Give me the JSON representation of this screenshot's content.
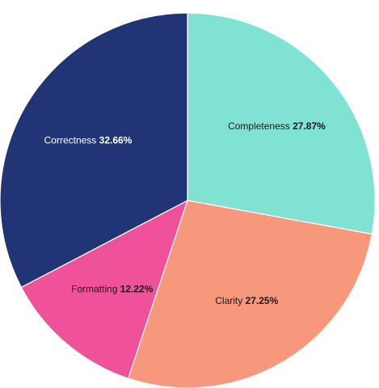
{
  "chart_data": {
    "type": "pie",
    "title": "",
    "start_angle_deg": 0,
    "direction": "clockwise",
    "slices": [
      {
        "name": "Completeness",
        "value": 27.87,
        "percent_label": "27.87%",
        "color": "#80E2D3",
        "label_color": "#1a1a1a"
      },
      {
        "name": "Clarity",
        "value": 27.25,
        "percent_label": "27.25%",
        "color": "#F7977C",
        "label_color": "#1a1a1a"
      },
      {
        "name": "Formatting",
        "value": 12.22,
        "percent_label": "12.22%",
        "color": "#EF519B",
        "label_color": "#1a1a1a"
      },
      {
        "name": "Correctness",
        "value": 32.66,
        "percent_label": "32.66%",
        "color": "#213476",
        "label_color": "#ffffff"
      }
    ]
  }
}
